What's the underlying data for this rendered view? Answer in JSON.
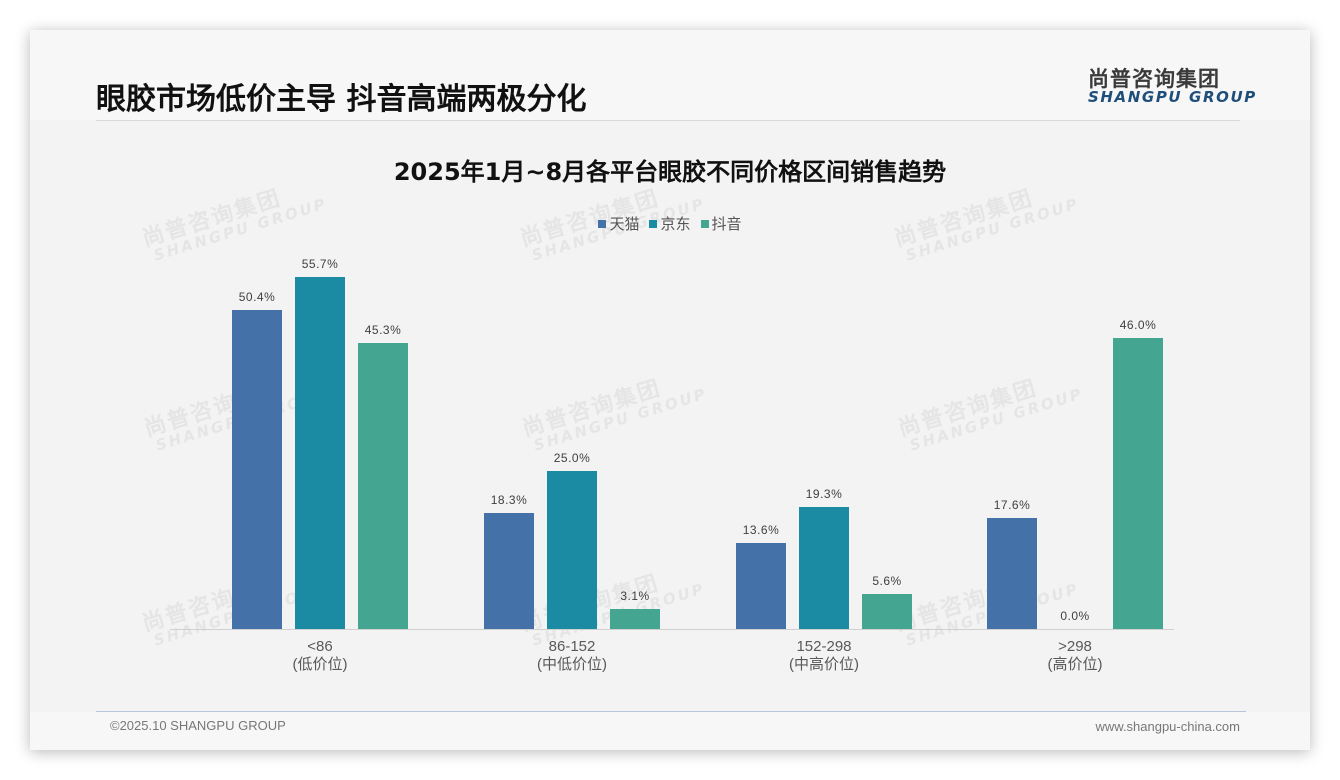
{
  "header": {
    "title": "眼胶市场低价主导 抖音高端两极分化",
    "logo_cn": "尚普咨询集团",
    "logo_en": "SHANGPU GROUP"
  },
  "watermark": {
    "cn": "尚普咨询集团",
    "en": "SHANGPU GROUP"
  },
  "footer": {
    "copyright": "©2025.10 SHANGPU GROUP",
    "website": "www.shangpu-china.com"
  },
  "colors": {
    "tmall": "#4472a8",
    "jd": "#1b8aa3",
    "douyin": "#44a690"
  },
  "chart_data": {
    "type": "bar",
    "title": "2025年1月~8月各平台眼胶不同价格区间销售趋势",
    "xlabel": "",
    "ylabel": "",
    "ylim": [
      0,
      60
    ],
    "grid": false,
    "legend_position": "top",
    "categories": [
      "<86\n(低价位)",
      "86-152\n(中低价位)",
      "152-298\n(中高价位)",
      ">298\n(高价位)"
    ],
    "category_ranges": [
      "<86",
      "86-152",
      "152-298",
      ">298"
    ],
    "category_tiers": [
      "(低价位)",
      "(中低价位)",
      "(中高价位)",
      "(高价位)"
    ],
    "series": [
      {
        "name": "天猫",
        "values": [
          50.4,
          18.3,
          13.6,
          17.6
        ],
        "labels": [
          "50.4%",
          "18.3%",
          "13.6%",
          "17.6%"
        ]
      },
      {
        "name": "京东",
        "values": [
          55.7,
          25.0,
          19.3,
          0.0
        ],
        "labels": [
          "55.7%",
          "25.0%",
          "19.3%",
          "0.0%"
        ]
      },
      {
        "name": "抖音",
        "values": [
          45.3,
          3.1,
          5.6,
          46.0
        ],
        "labels": [
          "45.3%",
          "3.1%",
          "5.6%",
          "46.0%"
        ]
      }
    ],
    "unit": "%"
  }
}
